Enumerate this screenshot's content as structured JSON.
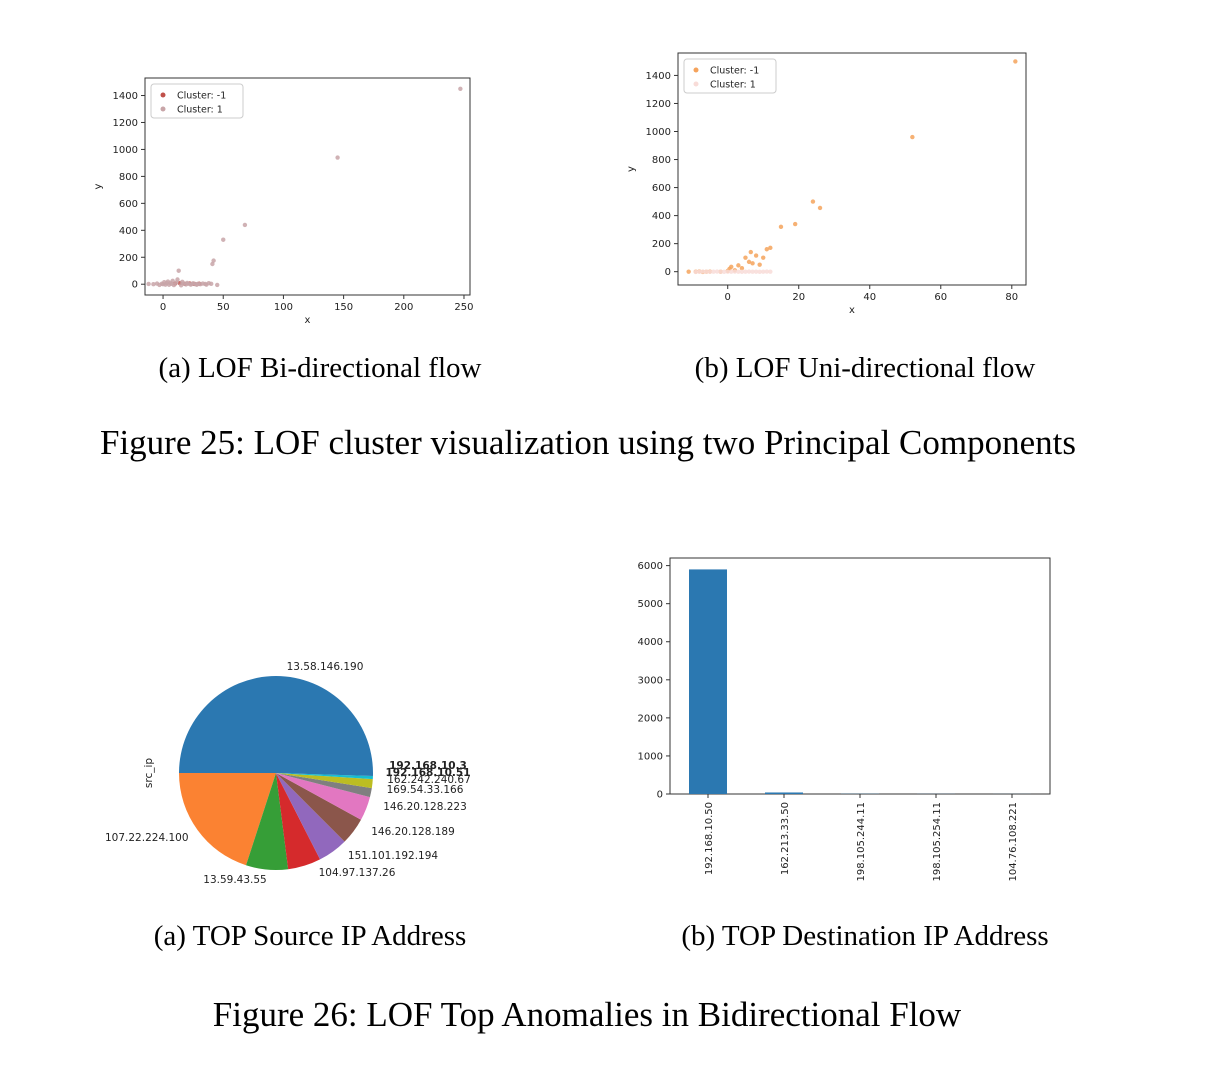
{
  "figure25": {
    "caption": "Figure 25: LOF cluster visualization using two Principal Components",
    "panel_a": {
      "caption": "(a) LOF Bi-directional flow",
      "chart_data": {
        "type": "scatter",
        "xlabel": "x",
        "ylabel": "y",
        "xlim": [
          -15,
          255
        ],
        "ylim": [
          -80,
          1530
        ],
        "xticks": [
          0,
          50,
          100,
          150,
          200,
          250
        ],
        "yticks": [
          0,
          200,
          400,
          600,
          800,
          1000,
          1200,
          1400
        ],
        "legend_placement": "upper-left",
        "grid": false,
        "series": [
          {
            "name": "Cluster: -1",
            "color": "#c0504a",
            "points": [
              [
                10,
                5
              ],
              [
                14,
                8
              ],
              [
                18,
                3
              ],
              [
                22,
                6
              ],
              [
                26,
                2
              ],
              [
                30,
                4
              ]
            ]
          },
          {
            "name": "Cluster: 1",
            "color": "#c8a5a8",
            "points": [
              [
                -12,
                2
              ],
              [
                -8,
                0
              ],
              [
                -5,
                5
              ],
              [
                -3,
                -5
              ],
              [
                -1,
                4
              ],
              [
                0,
                0
              ],
              [
                1,
                15
              ],
              [
                2,
                -3
              ],
              [
                3,
                8
              ],
              [
                4,
                20
              ],
              [
                5,
                -4
              ],
              [
                6,
                10
              ],
              [
                7,
                3
              ],
              [
                8,
                25
              ],
              [
                9,
                -6
              ],
              [
                11,
                12
              ],
              [
                12,
                35
              ],
              [
                13,
                100
              ],
              [
                15,
                -8
              ],
              [
                16,
                18
              ],
              [
                17,
                6
              ],
              [
                19,
                -2
              ],
              [
                20,
                9
              ],
              [
                21,
                4
              ],
              [
                23,
                -3
              ],
              [
                24,
                2
              ],
              [
                25,
                7
              ],
              [
                27,
                1
              ],
              [
                28,
                -4
              ],
              [
                29,
                3
              ],
              [
                31,
                0
              ],
              [
                33,
                5
              ],
              [
                35,
                2
              ],
              [
                36,
                -3
              ],
              [
                38,
                8
              ],
              [
                40,
                3
              ],
              [
                41,
                150
              ],
              [
                42,
                175
              ],
              [
                45,
                -5
              ],
              [
                50,
                330
              ],
              [
                68,
                440
              ],
              [
                145,
                940
              ],
              [
                247,
                1450
              ]
            ]
          }
        ]
      }
    },
    "panel_b": {
      "caption": "(b) LOF Uni-directional flow",
      "chart_data": {
        "type": "scatter",
        "xlabel": "x",
        "ylabel": "y",
        "xlim": [
          -14,
          84
        ],
        "ylim": [
          -95,
          1560
        ],
        "xticks": [
          0,
          20,
          40,
          60,
          80
        ],
        "yticks": [
          0,
          200,
          400,
          600,
          800,
          1000,
          1200,
          1400
        ],
        "legend_placement": "upper-left",
        "grid": false,
        "series": [
          {
            "name": "Cluster: -1",
            "color": "#f5a35c",
            "points": [
              [
                -11,
                0
              ],
              [
                -9,
                0
              ],
              [
                -8,
                2
              ],
              [
                -7,
                -2
              ],
              [
                -6,
                0
              ],
              [
                -5,
                1
              ],
              [
                -2,
                0
              ],
              [
                0,
                5
              ],
              [
                0.5,
                20
              ],
              [
                1,
                35
              ],
              [
                2,
                10
              ],
              [
                3,
                45
              ],
              [
                4,
                25
              ],
              [
                5,
                100
              ],
              [
                6,
                70
              ],
              [
                6.5,
                140
              ],
              [
                7,
                60
              ],
              [
                8,
                115
              ],
              [
                9,
                50
              ],
              [
                10,
                100
              ],
              [
                11,
                160
              ],
              [
                12,
                170
              ],
              [
                15,
                320
              ],
              [
                19,
                340
              ],
              [
                24,
                500
              ],
              [
                26,
                455
              ],
              [
                52,
                960
              ],
              [
                81,
                1500
              ]
            ]
          },
          {
            "name": "Cluster: 1",
            "color": "#f8dcd8",
            "points": [
              [
                -9,
                -2
              ],
              [
                -8,
                0
              ],
              [
                -7,
                1
              ],
              [
                -6,
                0
              ],
              [
                -5,
                -1
              ],
              [
                -4,
                0
              ],
              [
                -3,
                1
              ],
              [
                -2,
                0
              ],
              [
                -1,
                -1
              ],
              [
                0,
                0
              ],
              [
                1,
                0
              ],
              [
                2,
                1
              ],
              [
                3,
                0
              ],
              [
                4,
                -1
              ],
              [
                5,
                0
              ],
              [
                6,
                1
              ],
              [
                7,
                0
              ],
              [
                8,
                0
              ],
              [
                9,
                -1
              ],
              [
                10,
                0
              ],
              [
                11,
                1
              ],
              [
                12,
                0
              ]
            ]
          }
        ]
      }
    }
  },
  "figure26": {
    "caption": "Figure 26: LOF Top Anomalies in Bidirectional Flow",
    "panel_a": {
      "caption": "(a) TOP Source IP Address",
      "chart_data": {
        "type": "pie",
        "ylabel": "src_ip",
        "slices": [
          {
            "label": "13.58.146.190",
            "value": 50.0,
            "color": "#2b78b1"
          },
          {
            "label": "107.22.224.100",
            "value": 20.0,
            "color": "#fb8232"
          },
          {
            "label": "13.59.43.55",
            "value": 7.0,
            "color": "#369e37"
          },
          {
            "label": "104.97.137.26",
            "value": 5.5,
            "color": "#d52a2c"
          },
          {
            "label": "151.101.192.194",
            "value": 5.0,
            "color": "#9168bd"
          },
          {
            "label": "146.20.128.189",
            "value": 4.5,
            "color": "#8b564b"
          },
          {
            "label": "146.20.128.223",
            "value": 4.0,
            "color": "#e277c1"
          },
          {
            "label": "169.54.33.166",
            "value": 1.5,
            "color": "#7f7f7f"
          },
          {
            "label": "162.242.240.67",
            "value": 1.5,
            "color": "#bcbd22"
          },
          {
            "label": "192.168.10.51",
            "value": 0.5,
            "color": "#17bed0"
          },
          {
            "label": "192.168.10.3",
            "value": 0.5,
            "color": "#2b78b1"
          }
        ]
      }
    },
    "panel_b": {
      "caption": "(b) TOP Destination IP Address",
      "chart_data": {
        "type": "bar",
        "categories": [
          "192.168.10.50",
          "162.213.33.50",
          "198.105.244.11",
          "198.105.254.11",
          "104.76.108.221"
        ],
        "values": [
          5900,
          40,
          5,
          3,
          2
        ],
        "ylim": [
          0,
          6200
        ],
        "yticks": [
          0,
          1000,
          2000,
          3000,
          4000,
          5000,
          6000
        ],
        "bar_color": "#2b78b1",
        "grid": false
      }
    }
  }
}
